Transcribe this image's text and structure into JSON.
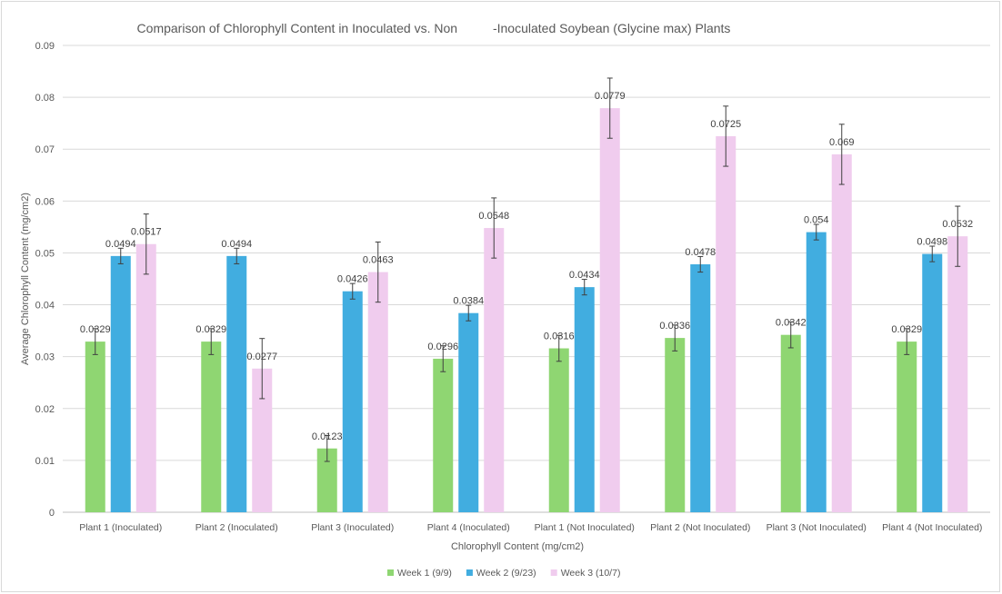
{
  "chart_data": {
    "type": "bar",
    "title": "Comparison of Chlorophyll Content in Inoculated vs. Non          -Inoculated Soybean (Glycine max) Plants",
    "xlabel": "Chlorophyll Content (mg/cm2)",
    "ylabel": "Average Chlorophyll Content (mg/cm2)",
    "ylim": [
      0,
      0.09
    ],
    "yticks": [
      "0",
      "0.01",
      "0.02",
      "0.03",
      "0.04",
      "0.05",
      "0.06",
      "0.07",
      "0.08",
      "0.09"
    ],
    "grid": true,
    "legend_position": "bottom",
    "categories": [
      "Plant 1 (Inoculated)",
      "Plant 2 (Inoculated)",
      "Plant 3 (Inoculated)",
      "Plant 4 (Inoculated)",
      "Plant 1 (Not Inoculated)",
      "Plant 2 (Not Inoculated)",
      "Plant 3 (Not Inoculated)",
      "Plant 4 (Not Inoculated)"
    ],
    "series": [
      {
        "name": "Week 1 (9/9)",
        "color": "#8fd672",
        "values": [
          0.0329,
          0.0329,
          0.0123,
          0.0296,
          0.0316,
          0.0336,
          0.0342,
          0.0329
        ],
        "labels": [
          "0.0329",
          "0.0329",
          "0.0123",
          "0.0296",
          "0.0316",
          "0.0336",
          "0.0342",
          "0.0329"
        ],
        "errors": [
          0.0025,
          0.0025,
          0.0025,
          0.0025,
          0.0025,
          0.0025,
          0.0025,
          0.0025
        ]
      },
      {
        "name": "Week 2 (9/23)",
        "color": "#41ade0",
        "values": [
          0.0494,
          0.0494,
          0.0426,
          0.0384,
          0.0434,
          0.0478,
          0.054,
          0.0498
        ],
        "labels": [
          "0.0494",
          "0.0494",
          "0.0426",
          "0.0384",
          "0.0434",
          "0.0478",
          "0.054",
          "0.0498"
        ],
        "errors": [
          0.0015,
          0.0015,
          0.0015,
          0.0015,
          0.0015,
          0.0015,
          0.0015,
          0.0015
        ]
      },
      {
        "name": "Week 3 (10/7)",
        "color": "#f0ccee",
        "values": [
          0.0517,
          0.0277,
          0.0463,
          0.0548,
          0.0779,
          0.0725,
          0.069,
          0.0532
        ],
        "labels": [
          "0.0517",
          "0.0277",
          "0.0463",
          "0.0548",
          "0.0779",
          "0.0725",
          "0.069",
          "0.0532"
        ],
        "errors": [
          0.0058,
          0.0058,
          0.0058,
          0.0058,
          0.0058,
          0.0058,
          0.0058,
          0.0058
        ]
      }
    ]
  }
}
